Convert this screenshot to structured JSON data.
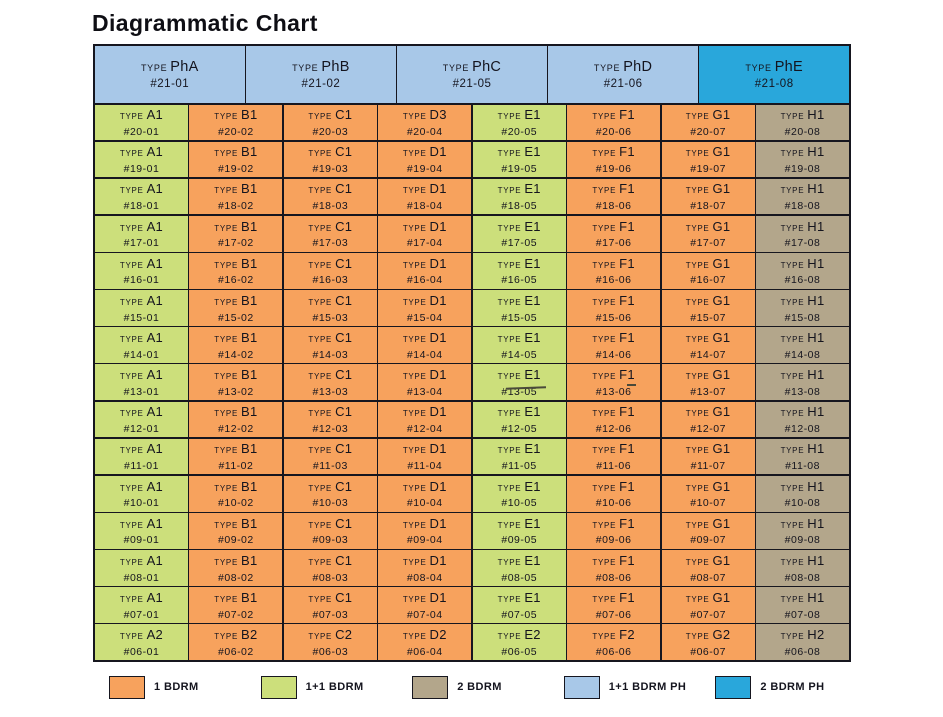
{
  "title": "Diagrammatic Chart",
  "labels": {
    "type_prefix": "TYPE"
  },
  "colors": {
    "one_bdrm": "#F7A25D",
    "one_plus_one_bdrm": "#CCDF7B",
    "two_bdrm": "#B3A68B",
    "one_plus_one_bdrm_ph": "#A8C8E8",
    "two_bdrm_ph": "#29A7DB",
    "line": "#16161F",
    "text": "#14141E"
  },
  "penthouse": [
    {
      "type": "PhA",
      "unit": "#21-01",
      "category": "one_plus_one_bdrm_ph"
    },
    {
      "type": "PhB",
      "unit": "#21-02",
      "category": "one_plus_one_bdrm_ph"
    },
    {
      "type": "PhC",
      "unit": "#21-05",
      "category": "one_plus_one_bdrm_ph"
    },
    {
      "type": "PhD",
      "unit": "#21-06",
      "category": "one_plus_one_bdrm_ph"
    },
    {
      "type": "PhE",
      "unit": "#21-08",
      "category": "two_bdrm_ph"
    }
  ],
  "grid": {
    "column_categories": [
      "one_plus_one_bdrm",
      "one_bdrm",
      "one_bdrm",
      "one_bdrm",
      "one_plus_one_bdrm",
      "one_bdrm",
      "one_bdrm",
      "two_bdrm"
    ],
    "floors": [
      {
        "floor": "20",
        "cells": [
          {
            "type": "A1",
            "unit": "#20-01"
          },
          {
            "type": "B1",
            "unit": "#20-02"
          },
          {
            "type": "C1",
            "unit": "#20-03"
          },
          {
            "type": "D3",
            "unit": "#20-04"
          },
          {
            "type": "E1",
            "unit": "#20-05"
          },
          {
            "type": "F1",
            "unit": "#20-06"
          },
          {
            "type": "G1",
            "unit": "#20-07"
          },
          {
            "type": "H1",
            "unit": "#20-08"
          }
        ]
      },
      {
        "floor": "19",
        "cells": [
          {
            "type": "A1",
            "unit": "#19-01"
          },
          {
            "type": "B1",
            "unit": "#19-02"
          },
          {
            "type": "C1",
            "unit": "#19-03"
          },
          {
            "type": "D1",
            "unit": "#19-04"
          },
          {
            "type": "E1",
            "unit": "#19-05"
          },
          {
            "type": "F1",
            "unit": "#19-06"
          },
          {
            "type": "G1",
            "unit": "#19-07"
          },
          {
            "type": "H1",
            "unit": "#19-08"
          }
        ]
      },
      {
        "floor": "18",
        "cells": [
          {
            "type": "A1",
            "unit": "#18-01"
          },
          {
            "type": "B1",
            "unit": "#18-02"
          },
          {
            "type": "C1",
            "unit": "#18-03"
          },
          {
            "type": "D1",
            "unit": "#18-04"
          },
          {
            "type": "E1",
            "unit": "#18-05"
          },
          {
            "type": "F1",
            "unit": "#18-06"
          },
          {
            "type": "G1",
            "unit": "#18-07"
          },
          {
            "type": "H1",
            "unit": "#18-08"
          }
        ]
      },
      {
        "floor": "17",
        "cells": [
          {
            "type": "A1",
            "unit": "#17-01"
          },
          {
            "type": "B1",
            "unit": "#17-02"
          },
          {
            "type": "C1",
            "unit": "#17-03"
          },
          {
            "type": "D1",
            "unit": "#17-04"
          },
          {
            "type": "E1",
            "unit": "#17-05"
          },
          {
            "type": "F1",
            "unit": "#17-06"
          },
          {
            "type": "G1",
            "unit": "#17-07"
          },
          {
            "type": "H1",
            "unit": "#17-08"
          }
        ]
      },
      {
        "floor": "16",
        "cells": [
          {
            "type": "A1",
            "unit": "#16-01"
          },
          {
            "type": "B1",
            "unit": "#16-02"
          },
          {
            "type": "C1",
            "unit": "#16-03"
          },
          {
            "type": "D1",
            "unit": "#16-04"
          },
          {
            "type": "E1",
            "unit": "#16-05"
          },
          {
            "type": "F1",
            "unit": "#16-06"
          },
          {
            "type": "G1",
            "unit": "#16-07"
          },
          {
            "type": "H1",
            "unit": "#16-08"
          }
        ]
      },
      {
        "floor": "15",
        "cells": [
          {
            "type": "A1",
            "unit": "#15-01"
          },
          {
            "type": "B1",
            "unit": "#15-02"
          },
          {
            "type": "C1",
            "unit": "#15-03"
          },
          {
            "type": "D1",
            "unit": "#15-04"
          },
          {
            "type": "E1",
            "unit": "#15-05"
          },
          {
            "type": "F1",
            "unit": "#15-06"
          },
          {
            "type": "G1",
            "unit": "#15-07"
          },
          {
            "type": "H1",
            "unit": "#15-08"
          }
        ]
      },
      {
        "floor": "14",
        "cells": [
          {
            "type": "A1",
            "unit": "#14-01"
          },
          {
            "type": "B1",
            "unit": "#14-02"
          },
          {
            "type": "C1",
            "unit": "#14-03"
          },
          {
            "type": "D1",
            "unit": "#14-04"
          },
          {
            "type": "E1",
            "unit": "#14-05"
          },
          {
            "type": "F1",
            "unit": "#14-06"
          },
          {
            "type": "G1",
            "unit": "#14-07"
          },
          {
            "type": "H1",
            "unit": "#14-08"
          }
        ]
      },
      {
        "floor": "13",
        "cells": [
          {
            "type": "A1",
            "unit": "#13-01"
          },
          {
            "type": "B1",
            "unit": "#13-02"
          },
          {
            "type": "C1",
            "unit": "#13-03"
          },
          {
            "type": "D1",
            "unit": "#13-04"
          },
          {
            "type": "E1",
            "unit": "#13-05"
          },
          {
            "type": "F1",
            "unit": "#13-06"
          },
          {
            "type": "G1",
            "unit": "#13-07"
          },
          {
            "type": "H1",
            "unit": "#13-08"
          }
        ]
      },
      {
        "floor": "12",
        "cells": [
          {
            "type": "A1",
            "unit": "#12-01"
          },
          {
            "type": "B1",
            "unit": "#12-02"
          },
          {
            "type": "C1",
            "unit": "#12-03"
          },
          {
            "type": "D1",
            "unit": "#12-04"
          },
          {
            "type": "E1",
            "unit": "#12-05"
          },
          {
            "type": "F1",
            "unit": "#12-06"
          },
          {
            "type": "G1",
            "unit": "#12-07"
          },
          {
            "type": "H1",
            "unit": "#12-08"
          }
        ]
      },
      {
        "floor": "11",
        "cells": [
          {
            "type": "A1",
            "unit": "#11-01"
          },
          {
            "type": "B1",
            "unit": "#11-02"
          },
          {
            "type": "C1",
            "unit": "#11-03"
          },
          {
            "type": "D1",
            "unit": "#11-04"
          },
          {
            "type": "E1",
            "unit": "#11-05"
          },
          {
            "type": "F1",
            "unit": "#11-06"
          },
          {
            "type": "G1",
            "unit": "#11-07"
          },
          {
            "type": "H1",
            "unit": "#11-08"
          }
        ]
      },
      {
        "floor": "10",
        "cells": [
          {
            "type": "A1",
            "unit": "#10-01"
          },
          {
            "type": "B1",
            "unit": "#10-02"
          },
          {
            "type": "C1",
            "unit": "#10-03"
          },
          {
            "type": "D1",
            "unit": "#10-04"
          },
          {
            "type": "E1",
            "unit": "#10-05"
          },
          {
            "type": "F1",
            "unit": "#10-06"
          },
          {
            "type": "G1",
            "unit": "#10-07"
          },
          {
            "type": "H1",
            "unit": "#10-08"
          }
        ]
      },
      {
        "floor": "09",
        "cells": [
          {
            "type": "A1",
            "unit": "#09-01"
          },
          {
            "type": "B1",
            "unit": "#09-02"
          },
          {
            "type": "C1",
            "unit": "#09-03"
          },
          {
            "type": "D1",
            "unit": "#09-04"
          },
          {
            "type": "E1",
            "unit": "#09-05"
          },
          {
            "type": "F1",
            "unit": "#09-06"
          },
          {
            "type": "G1",
            "unit": "#09-07"
          },
          {
            "type": "H1",
            "unit": "#09-08"
          }
        ]
      },
      {
        "floor": "08",
        "cells": [
          {
            "type": "A1",
            "unit": "#08-01"
          },
          {
            "type": "B1",
            "unit": "#08-02"
          },
          {
            "type": "C1",
            "unit": "#08-03"
          },
          {
            "type": "D1",
            "unit": "#08-04"
          },
          {
            "type": "E1",
            "unit": "#08-05"
          },
          {
            "type": "F1",
            "unit": "#08-06"
          },
          {
            "type": "G1",
            "unit": "#08-07"
          },
          {
            "type": "H1",
            "unit": "#08-08"
          }
        ]
      },
      {
        "floor": "07",
        "cells": [
          {
            "type": "A1",
            "unit": "#07-01"
          },
          {
            "type": "B1",
            "unit": "#07-02"
          },
          {
            "type": "C1",
            "unit": "#07-03"
          },
          {
            "type": "D1",
            "unit": "#07-04"
          },
          {
            "type": "E1",
            "unit": "#07-05"
          },
          {
            "type": "F1",
            "unit": "#07-06"
          },
          {
            "type": "G1",
            "unit": "#07-07"
          },
          {
            "type": "H1",
            "unit": "#07-08"
          }
        ]
      },
      {
        "floor": "06",
        "cells": [
          {
            "type": "A2",
            "unit": "#06-01"
          },
          {
            "type": "B2",
            "unit": "#06-02"
          },
          {
            "type": "C2",
            "unit": "#06-03"
          },
          {
            "type": "D2",
            "unit": "#06-04"
          },
          {
            "type": "E2",
            "unit": "#06-05"
          },
          {
            "type": "F2",
            "unit": "#06-06"
          },
          {
            "type": "G2",
            "unit": "#06-07"
          },
          {
            "type": "H2",
            "unit": "#06-08"
          }
        ]
      }
    ]
  },
  "legend": [
    {
      "label": "1 BDRM",
      "category": "one_bdrm"
    },
    {
      "label": "1+1 BDRM",
      "category": "one_plus_one_bdrm"
    },
    {
      "label": "2 BDRM",
      "category": "two_bdrm"
    },
    {
      "label": "1+1 BDRM PH",
      "category": "one_plus_one_bdrm_ph"
    },
    {
      "label": "2 BDRM PH",
      "category": "two_bdrm_ph"
    }
  ]
}
